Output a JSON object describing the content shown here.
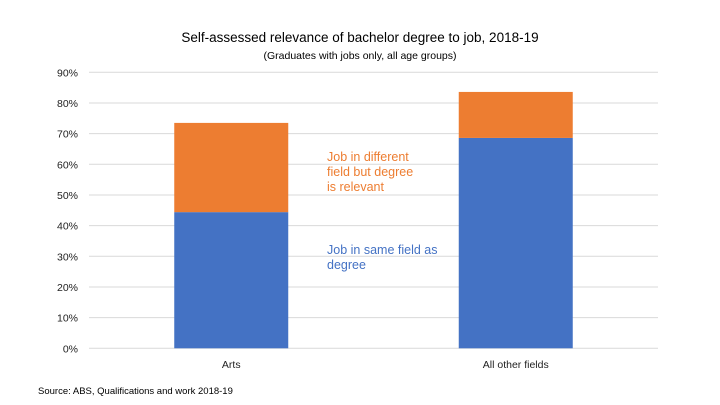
{
  "chart_data": {
    "type": "bar",
    "stacked": true,
    "title": "Self-assessed relevance of bachelor degree to job, 2018-19",
    "subtitle": "(Graduates with jobs only, all age groups)",
    "categories": [
      "Arts",
      "All other fields"
    ],
    "series": [
      {
        "name": "Job in same field as degree",
        "color": "#4472C4",
        "values": [
          44.4,
          68.6
        ]
      },
      {
        "name": "Job in different field but degree is relevant",
        "color": "#ED7D31",
        "values": [
          29.1,
          15.0
        ]
      }
    ],
    "ylim": [
      0,
      90
    ],
    "yticks": [
      "0%",
      "10%",
      "20%",
      "30%",
      "40%",
      "50%",
      "60%",
      "70%",
      "80%",
      "90%"
    ],
    "grid": true,
    "annotations": [
      {
        "lines": [
          "Job in different",
          "field but degree",
          "is relevant"
        ],
        "color": "#ED7D31"
      },
      {
        "lines": [
          "Job in same field as",
          "degree"
        ],
        "color": "#4472C4"
      }
    ],
    "source": "Source: ABS, Qualifications and work 2018-19"
  }
}
